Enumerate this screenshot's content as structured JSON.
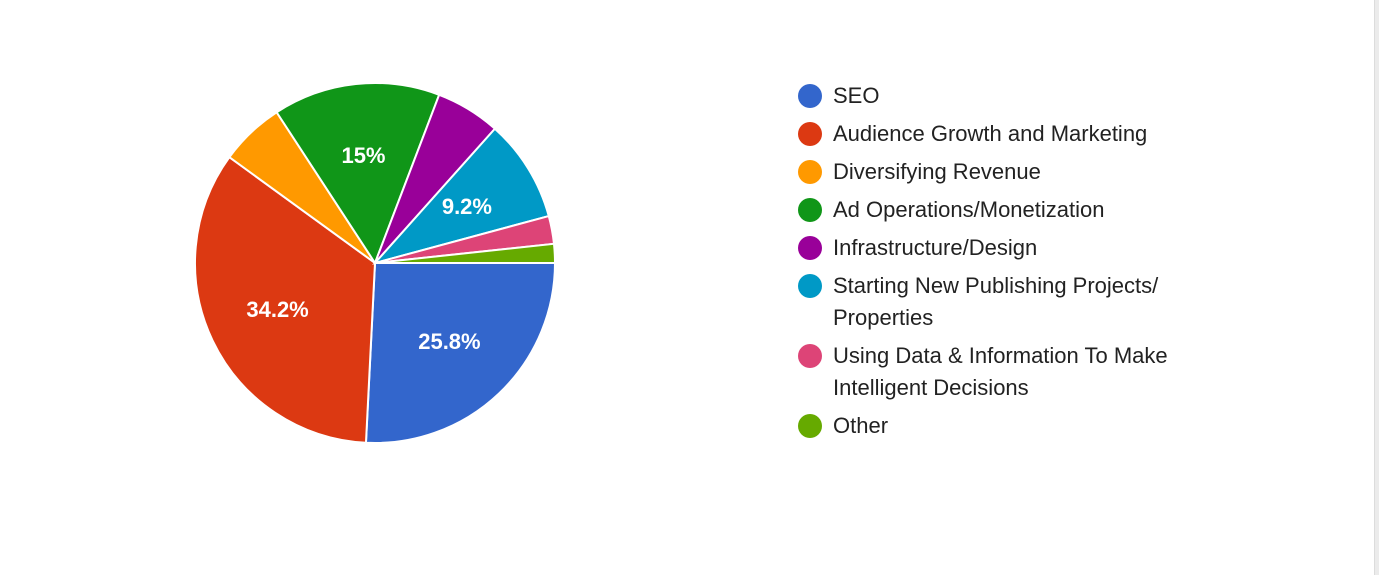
{
  "chart_data": {
    "type": "pie",
    "title": "",
    "slices": [
      {
        "name": "SEO",
        "value": 25.8,
        "label": "25.8%",
        "color": "#3366cc"
      },
      {
        "name": "Audience Growth and Marketing",
        "value": 34.2,
        "label": "34.2%",
        "color": "#dc3912"
      },
      {
        "name": "Diversifying Revenue",
        "value": 5.8,
        "label": "",
        "color": "#ff9900"
      },
      {
        "name": "Ad Operations/Monetization",
        "value": 15,
        "label": "15%",
        "color": "#109618"
      },
      {
        "name": "Infrastructure/Design",
        "value": 5.8,
        "label": "",
        "color": "#990099"
      },
      {
        "name": "Starting New Publishing Projects/ Properties",
        "value": 9.2,
        "label": "9.2%",
        "color": "#0099c6"
      },
      {
        "name": "Using Data & Information To Make Intelligent Decisions",
        "value": 2.5,
        "label": "",
        "color": "#dd4477"
      },
      {
        "name": "Other",
        "value": 1.7,
        "label": "",
        "color": "#66aa00"
      }
    ],
    "legend_position": "right"
  }
}
